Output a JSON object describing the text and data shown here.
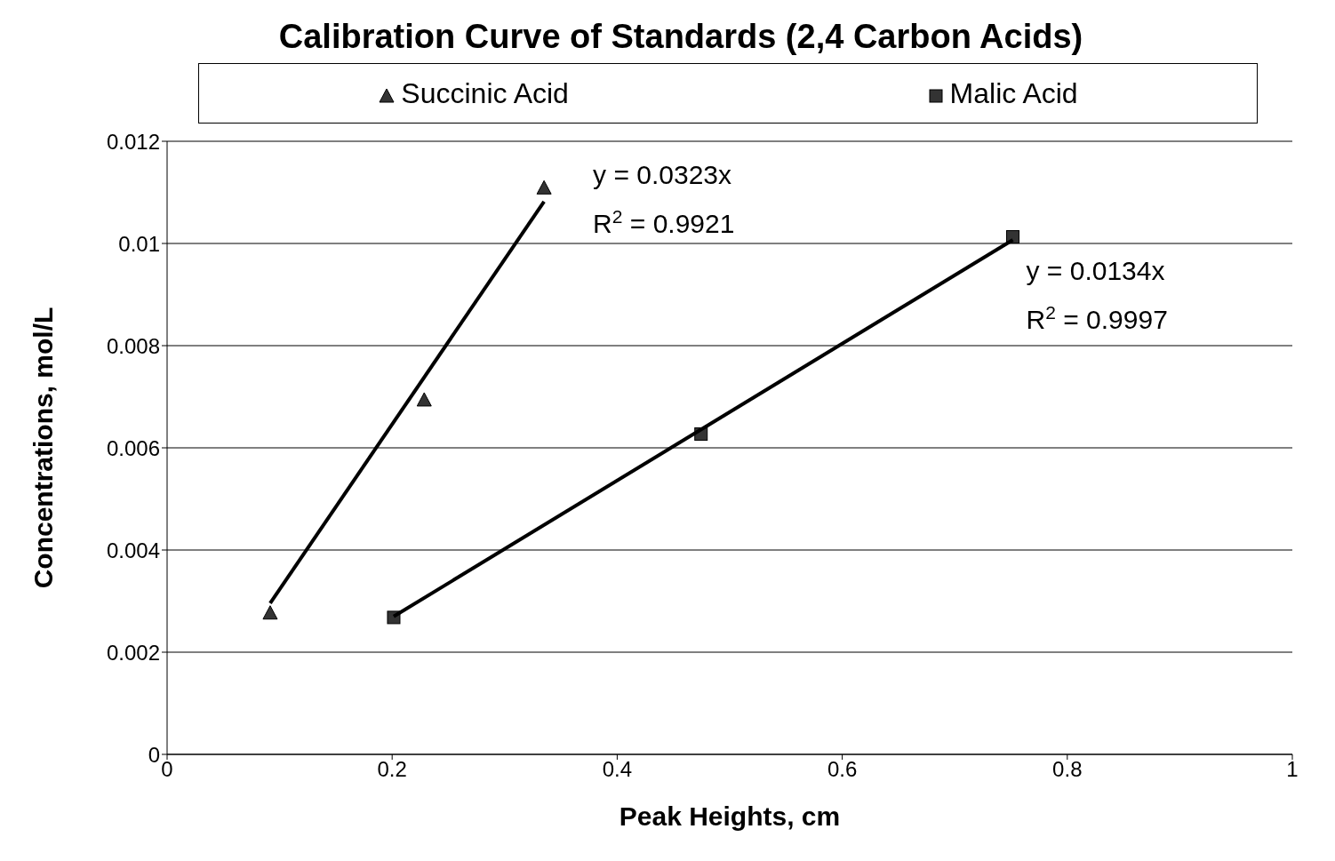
{
  "chart_data": {
    "type": "scatter",
    "title": "Calibration Curve of Standards (2,4 Carbon Acids)",
    "xlabel": "Peak Heights, cm",
    "ylabel": "Concentrations, mol/L",
    "series": [
      {
        "name": "Succinic Acid",
        "color": "#333333",
        "marker": "triangle",
        "x": [
          0.0916,
          0.2285,
          0.335
        ],
        "values": [
          0.00277,
          0.00694,
          0.01109
        ]
      },
      {
        "name": "Malic Acid",
        "color": "#333333",
        "marker": "square",
        "x": [
          0.2014,
          0.4745,
          0.7516
        ],
        "values": [
          0.00268,
          0.00627,
          0.01013
        ]
      },
      {
        "type": "line",
        "color": "#000000",
        "x": [
          0.0916,
          0.335
        ],
        "values": [
          0.00296,
          0.01082
        ]
      },
      {
        "type": "line",
        "color": "#000000",
        "x": [
          0.2014,
          0.7516
        ],
        "values": [
          0.0027,
          0.01007
        ]
      }
    ],
    "annotations": [
      "y = 0.0323x",
      "R$^{2}$ = 0.9921",
      "y = 0.0134x",
      "R$^{2}$ = 0.9997"
    ],
    "xlim": [
      0,
      1
    ],
    "xticks": [
      0,
      0.2,
      0.4,
      0.6,
      0.8,
      1
    ],
    "ylim": [
      0,
      0.012
    ],
    "yticks": [
      0,
      0.002,
      0.004,
      0.006,
      0.008,
      0.01,
      0.012
    ],
    "grid": "y",
    "legend": "top"
  }
}
